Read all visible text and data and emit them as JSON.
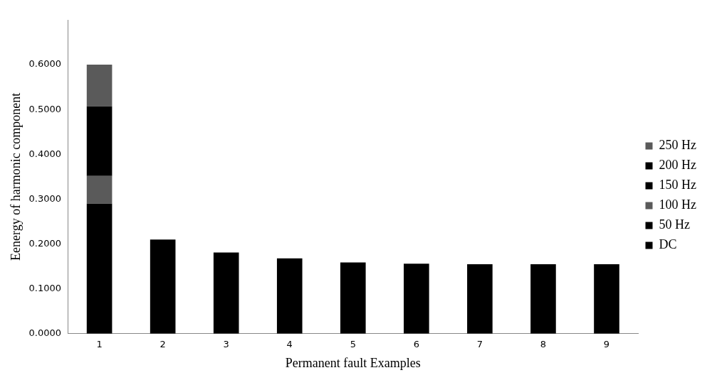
{
  "chart_data": {
    "type": "bar",
    "stacked": true,
    "xlabel": "Permanent fault Examples",
    "ylabel": "Eenergy of harmonic component",
    "categories": [
      "1",
      "2",
      "3",
      "4",
      "5",
      "6",
      "7",
      "8",
      "9"
    ],
    "series": [
      {
        "name": "DC",
        "color": "#000000",
        "values": [
          0,
          0,
          0,
          0,
          0,
          0,
          0,
          0,
          0
        ]
      },
      {
        "name": "50 Hz",
        "color": "#000000",
        "values": [
          0.29,
          0.21,
          0.181,
          0.168,
          0.159,
          0.156,
          0.155,
          0.155,
          0.155
        ]
      },
      {
        "name": "100 Hz",
        "color": "#5a5a5a",
        "values": [
          0.062,
          0,
          0,
          0,
          0,
          0,
          0,
          0,
          0
        ]
      },
      {
        "name": "150 Hz",
        "color": "#000000",
        "values": [
          0.155,
          0,
          0,
          0,
          0,
          0,
          0,
          0,
          0
        ]
      },
      {
        "name": "200 Hz",
        "color": "#000000",
        "values": [
          0,
          0,
          0,
          0,
          0,
          0,
          0,
          0,
          0
        ]
      },
      {
        "name": "250 Hz",
        "color": "#5a5a5a",
        "values": [
          0.093,
          0,
          0,
          0,
          0,
          0,
          0,
          0,
          0
        ]
      }
    ],
    "ylim": [
      0,
      0.7
    ],
    "yticks": [
      {
        "value": 0,
        "label": "0.0000"
      },
      {
        "value": 0.1,
        "label": "0.1000"
      },
      {
        "value": 0.2,
        "label": "0.2000"
      },
      {
        "value": 0.3,
        "label": "0.3000"
      },
      {
        "value": 0.4,
        "label": "0.4000"
      },
      {
        "value": 0.5,
        "label": "0.5000"
      },
      {
        "value": 0.6,
        "label": "0.6000"
      }
    ],
    "grid": false,
    "legend": "right"
  }
}
